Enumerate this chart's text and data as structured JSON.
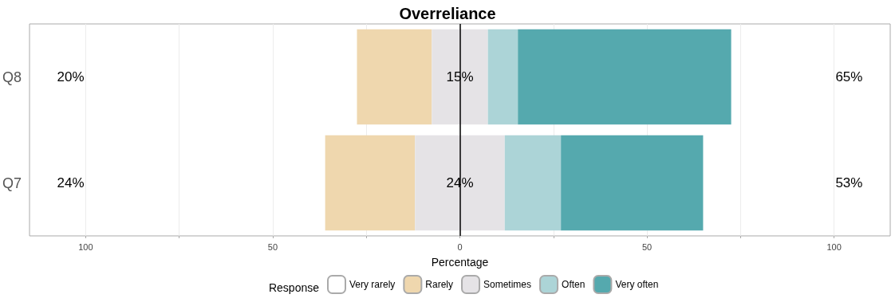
{
  "chart_data": {
    "type": "bar",
    "orientation": "horizontal",
    "title": "Overreliance",
    "xlabel": "Percentage",
    "legend_title": "Response",
    "legend": "bottom",
    "grid": "x",
    "categories": [
      "Q8",
      "Q7"
    ],
    "series": [
      {
        "name": "Very rarely",
        "color": "#ffffff",
        "values": [
          0,
          0
        ]
      },
      {
        "name": "Rarely",
        "color": "#efd7ae",
        "values": [
          20,
          24
        ],
        "base": [
          -27.5,
          -36
        ]
      },
      {
        "name": "Sometimes",
        "color": "#e5e3e6",
        "values": [
          15,
          24
        ],
        "base": [
          -7.5,
          -12
        ]
      },
      {
        "name": "Often",
        "color": "#acd4d7",
        "values": [
          8,
          15
        ],
        "base": [
          7.5,
          12
        ]
      },
      {
        "name": "Very often",
        "color": "#55a9ae",
        "values": [
          57,
          38
        ],
        "base": [
          15.5,
          27
        ]
      }
    ],
    "xlim": [
      -115,
      115
    ],
    "xticks": [
      {
        "value": -100,
        "label": "100"
      },
      {
        "value": -75,
        "label": null
      },
      {
        "value": -50,
        "label": "50"
      },
      {
        "value": -25,
        "label": null
      },
      0,
      {
        "value": 25,
        "label": null
      },
      50,
      {
        "value": 75,
        "label": null
      },
      100
    ],
    "ref_lines": [
      {
        "axis": "x",
        "value": 0,
        "color": "#000000"
      }
    ],
    "annotations": [
      "20%",
      "15%",
      "65%",
      "24%",
      "24%",
      "53%"
    ]
  }
}
